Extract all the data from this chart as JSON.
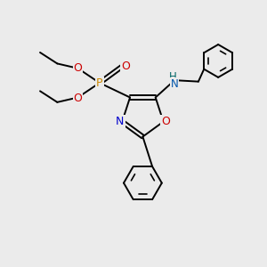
{
  "bg_color": "#ebebeb",
  "atom_colors": {
    "C": "#000000",
    "N": "#0000cc",
    "O": "#cc0000",
    "P": "#cc8800",
    "NH_N": "#0055aa",
    "NH_H": "#006666"
  },
  "bond_color": "#000000",
  "bond_width": 1.4
}
